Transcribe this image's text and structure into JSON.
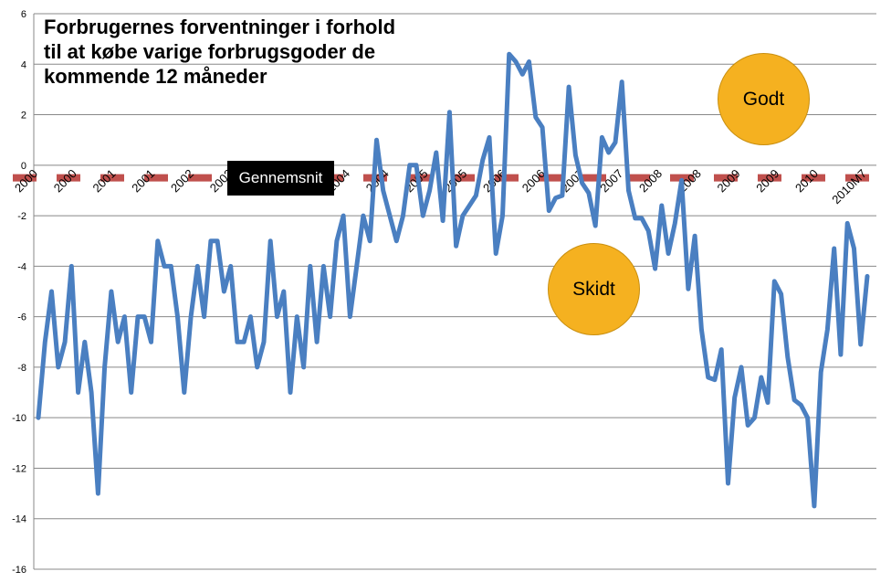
{
  "chart_data": {
    "type": "line",
    "title_lines": [
      "Forbrugernes forventninger i forhold",
      "til at købe varige forbrugsgoder de",
      "kommende 12 måneder"
    ],
    "ylim": [
      -16,
      6
    ],
    "yticks": [
      6,
      4,
      2,
      0,
      -2,
      -4,
      -6,
      -8,
      -10,
      -12,
      -14,
      -16
    ],
    "grid": true,
    "x_tick_labels": [
      "2000",
      "2000",
      "2001",
      "2001",
      "2002",
      "2002",
      "2003",
      "2003",
      "2004",
      "2004",
      "2005",
      "2005",
      "2006",
      "2006",
      "2007",
      "2007",
      "2008",
      "2008",
      "2009",
      "2009",
      "2010",
      "2010M7"
    ],
    "average_label": "Gennemsnit",
    "average_value": -0.5,
    "annotations": {
      "good": "Godt",
      "bad": "Skidt"
    },
    "series": [
      {
        "color": "#4a7fc1",
        "values": [
          -10,
          -7,
          -5,
          -8,
          -7,
          -4,
          -9,
          -7,
          -9,
          -13,
          -8,
          -5,
          -7,
          -6,
          -9,
          -6,
          -6,
          -7,
          -3,
          -4,
          -4,
          -6,
          -9,
          -6,
          -4,
          -6,
          -3,
          -3,
          -5,
          -4,
          -7,
          -7,
          -6,
          -8,
          -7,
          -3,
          -6,
          -5,
          -9,
          -6,
          -8,
          -4,
          -7,
          -4,
          -6,
          -3,
          -2,
          -6,
          -4,
          -2,
          -3,
          1,
          -1,
          -2,
          -3,
          -2,
          0,
          0,
          -2,
          -1,
          0.5,
          -2.2,
          2.1,
          -3.2,
          -2,
          -1.6,
          -1.2,
          0.2,
          1.1,
          -3.5,
          -2,
          4.4,
          4.1,
          3.6,
          4.1,
          1.9,
          1.5,
          -1.8,
          -1.3,
          -1.2,
          3.1,
          0.4,
          -0.7,
          -1.1,
          -2.4,
          1.1,
          0.5,
          0.9,
          3.3,
          -1,
          -2.1,
          -2.1,
          -2.6,
          -4.1,
          -1.6,
          -3.5,
          -2.3,
          -0.6,
          -4.9,
          -2.8,
          -6.5,
          -8.4,
          -8.5,
          -7.3,
          -12.6,
          -9.2,
          -8,
          -10.3,
          -10,
          -8.4,
          -9.4,
          -4.6,
          -5.1,
          -7.6,
          -9.3,
          -9.5,
          -10,
          -13.5,
          -8.2,
          -6.5,
          -3.3,
          -7.5,
          -2.3,
          -3.3,
          -7.1,
          -4.4
        ]
      }
    ]
  }
}
